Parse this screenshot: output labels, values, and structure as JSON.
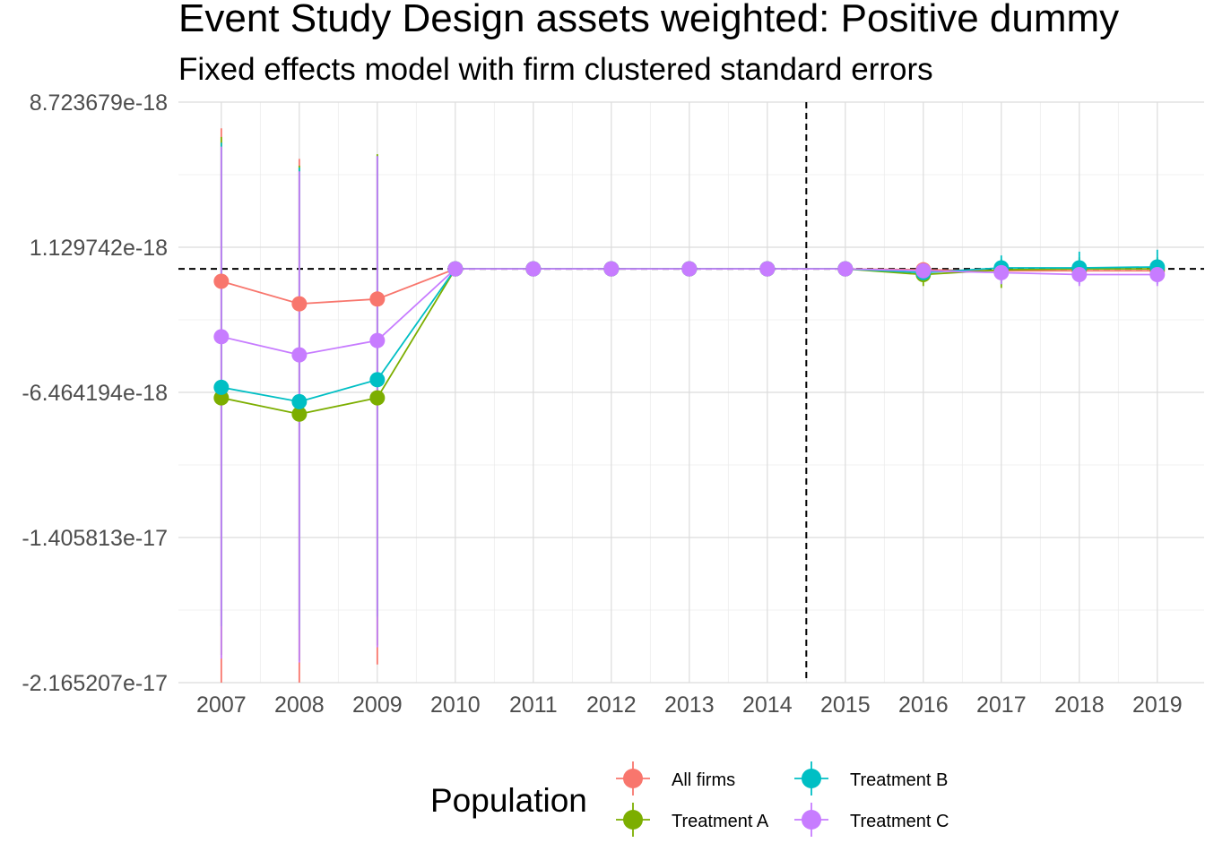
{
  "title": "Event Study Design assets weighted: Positive dummy",
  "subtitle": "Fixed effects model with firm clustered standard errors",
  "chart_data": {
    "type": "line",
    "title": "Event Study Design assets weighted: Positive dummy",
    "subtitle": "Fixed effects model with firm clustered standard errors",
    "xlabel": "",
    "ylabel": "",
    "x": [
      2007,
      2008,
      2009,
      2010,
      2011,
      2012,
      2013,
      2014,
      2015,
      2016,
      2017,
      2018,
      2019
    ],
    "x_tick_labels": [
      "2007",
      "2008",
      "2009",
      "2010",
      "2011",
      "2012",
      "2013",
      "2014",
      "2015",
      "2016",
      "2017",
      "2018",
      "2019"
    ],
    "y_ticks": [
      8.723679e-18,
      1.129742e-18,
      -6.464194e-18,
      -1.405813e-17,
      -2.165207e-17
    ],
    "y_tick_labels": [
      "8.723679e-18",
      "1.129742e-18",
      "-6.464194e-18",
      "-1.405813e-17",
      "-2.165207e-17"
    ],
    "ylim": [
      -2.165207e-17,
      8.723679e-18
    ],
    "grid": true,
    "reference_lines": {
      "horizontal_y": 0,
      "vertical_x": 2014.5
    },
    "legend": {
      "title": "Population",
      "position": "bottom"
    },
    "series": [
      {
        "name": "All firms",
        "color": "#F8766D",
        "values": [
          -6.5e-19,
          -1.83e-18,
          -1.58e-18,
          0,
          0,
          0,
          0,
          0,
          0,
          -5e-20,
          -1e-19,
          -1e-19,
          -1e-19
        ],
        "ci_low": [
          -2.17e-17,
          -2.18e-17,
          -2.07e-17,
          0,
          0,
          0,
          0,
          0,
          -1e-19,
          -2e-19,
          -3e-19,
          -3e-19,
          -3e-19
        ],
        "ci_high": [
          7.35e-18,
          5.75e-18,
          5.9e-18,
          0,
          0,
          0,
          0,
          0,
          1e-19,
          1e-19,
          1e-19,
          1e-19,
          1e-19
        ]
      },
      {
        "name": "Treatment A",
        "color": "#7CAE00",
        "values": [
          -6.75e-18,
          -7.6e-18,
          -6.75e-18,
          0,
          0,
          0,
          0,
          0,
          0,
          -3e-19,
          -5e-20,
          0,
          0
        ],
        "ci_low": [
          -2.02e-17,
          -2.05e-17,
          -1.97e-17,
          0,
          0,
          0,
          0,
          0,
          -1e-19,
          -9e-19,
          -1e-18,
          -7e-19,
          -6e-19
        ],
        "ci_high": [
          6.9e-18,
          5.4e-18,
          6e-18,
          0,
          0,
          0,
          0,
          0,
          1e-19,
          1e-19,
          5e-19,
          6e-19,
          6e-19
        ]
      },
      {
        "name": "Treatment B",
        "color": "#00BFC4",
        "values": [
          -6.2e-18,
          -6.95e-18,
          -5.8e-18,
          0,
          0,
          0,
          0,
          0,
          0,
          -2e-19,
          5e-20,
          5e-20,
          1e-19
        ],
        "ci_low": [
          -1.87e-17,
          -1.89e-17,
          -1.82e-17,
          0,
          0,
          0,
          0,
          0,
          -1e-19,
          -7e-19,
          -8e-19,
          -8e-19,
          -8e-19
        ],
        "ci_high": [
          6.6e-18,
          5.3e-18,
          5.9e-18,
          0,
          0,
          0,
          0,
          0,
          1e-19,
          2e-19,
          7e-19,
          9e-19,
          1e-18
        ]
      },
      {
        "name": "Treatment C",
        "color": "#C77CFF",
        "values": [
          -3.55e-18,
          -4.5e-18,
          -3.75e-18,
          0,
          0,
          0,
          0,
          0,
          0,
          -1e-19,
          -2e-19,
          -3e-19,
          -3e-19
        ],
        "ci_low": [
          -2.04e-17,
          -2.06e-17,
          -1.98e-17,
          0,
          0,
          0,
          0,
          0,
          -1e-19,
          -4e-19,
          -8e-19,
          -9e-19,
          -9e-19
        ],
        "ci_high": [
          6.4e-18,
          5.1e-18,
          5.9e-18,
          0,
          0,
          0,
          0,
          0,
          1e-19,
          2e-19,
          2e-19,
          1e-19,
          1e-19
        ]
      }
    ]
  }
}
